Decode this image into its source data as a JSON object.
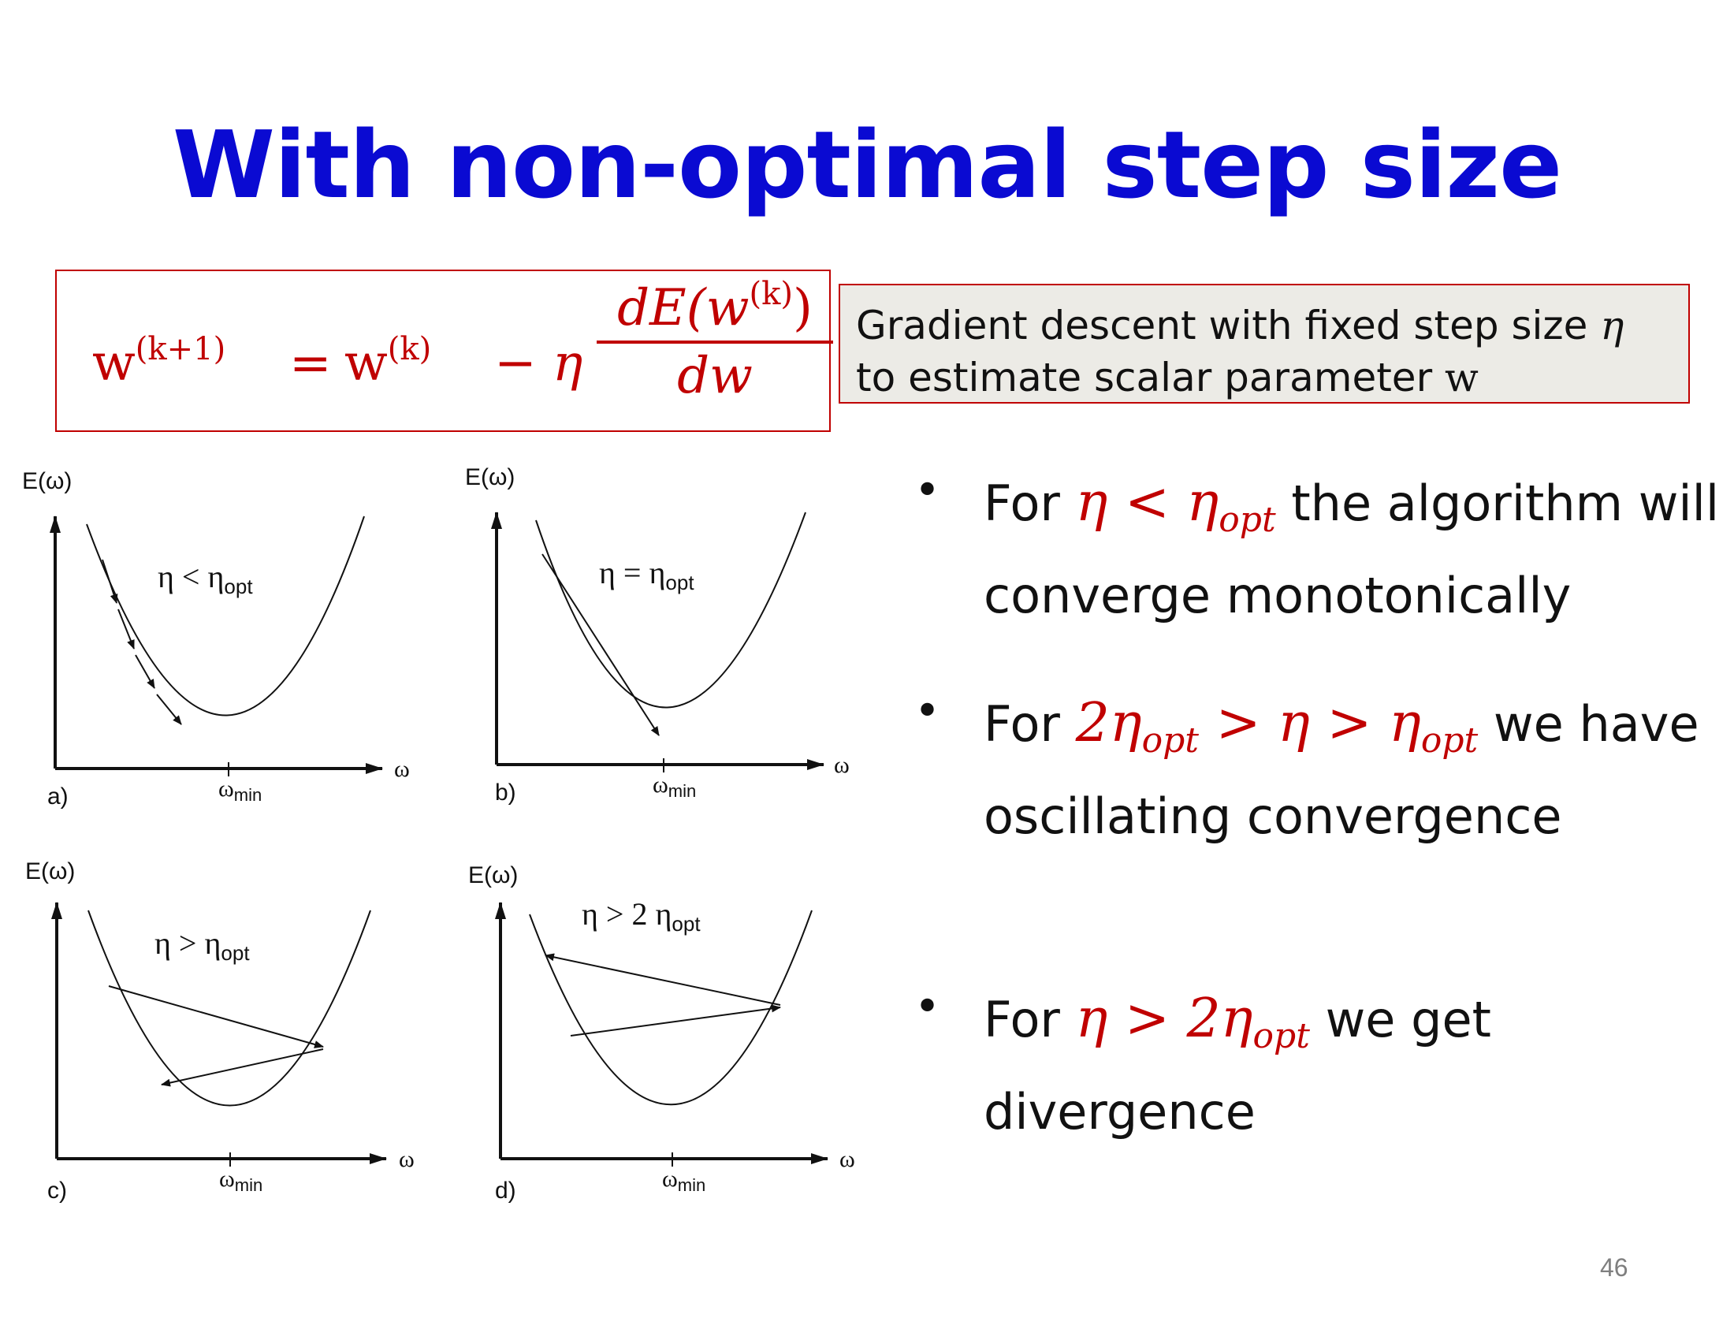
{
  "slide": {
    "title": "With non-optimal step size",
    "page_number": "46"
  },
  "formula": {
    "lhs": "w",
    "lhs_sup": "(k+1)",
    "equals": "=",
    "rhs_w": "w",
    "rhs_sup": "(k)",
    "minus_eta": "− η",
    "numerator": "dE(w",
    "numerator_sup": "(k)",
    "numerator_close": ")",
    "denominator": "dw"
  },
  "note": {
    "line1_text": "Gradient descent with fixed step size ",
    "line1_symbol": "η",
    "line2_text": "to estimate scalar parameter ",
    "line2_symbol": "w"
  },
  "bullets": [
    {
      "pre": "For ",
      "math_a": "η < η",
      "math_a_sub": "opt",
      "post": " the algorithm will converge monotonically"
    },
    {
      "pre": "For ",
      "math_a": "2η",
      "math_a_sub": "opt",
      "math_b": " > η > η",
      "math_b_sub": "opt",
      "post": " we have oscillating convergence"
    },
    {
      "pre": "For ",
      "math_a": "η > 2η",
      "math_a_sub": "opt",
      "post": " we get divergence"
    }
  ],
  "panels": [
    {
      "id": "a",
      "label": "a)",
      "y_label": "E(ω)",
      "x_label": "ω",
      "min_label": "ω",
      "min_sub": "min",
      "annotation": "η < η",
      "annotation_sub": "opt"
    },
    {
      "id": "b",
      "label": "b)",
      "y_label": "E(ω)",
      "x_label": "ω",
      "min_label": "ω",
      "min_sub": "min",
      "annotation": "η = η",
      "annotation_sub": "opt"
    },
    {
      "id": "c",
      "label": "c)",
      "y_label": "E(ω)",
      "x_label": "ω",
      "min_label": "ω",
      "min_sub": "min",
      "annotation": "η > η",
      "annotation_sub": "opt"
    },
    {
      "id": "d",
      "label": "d)",
      "y_label": "E(ω)",
      "x_label": "ω",
      "min_label": "ω",
      "min_sub": "min",
      "annotation": "η > 2 η",
      "annotation_sub": "opt"
    }
  ],
  "colors": {
    "title": "#0a0ad2",
    "accent_red": "#c00000",
    "note_bg": "#ecebe6"
  }
}
